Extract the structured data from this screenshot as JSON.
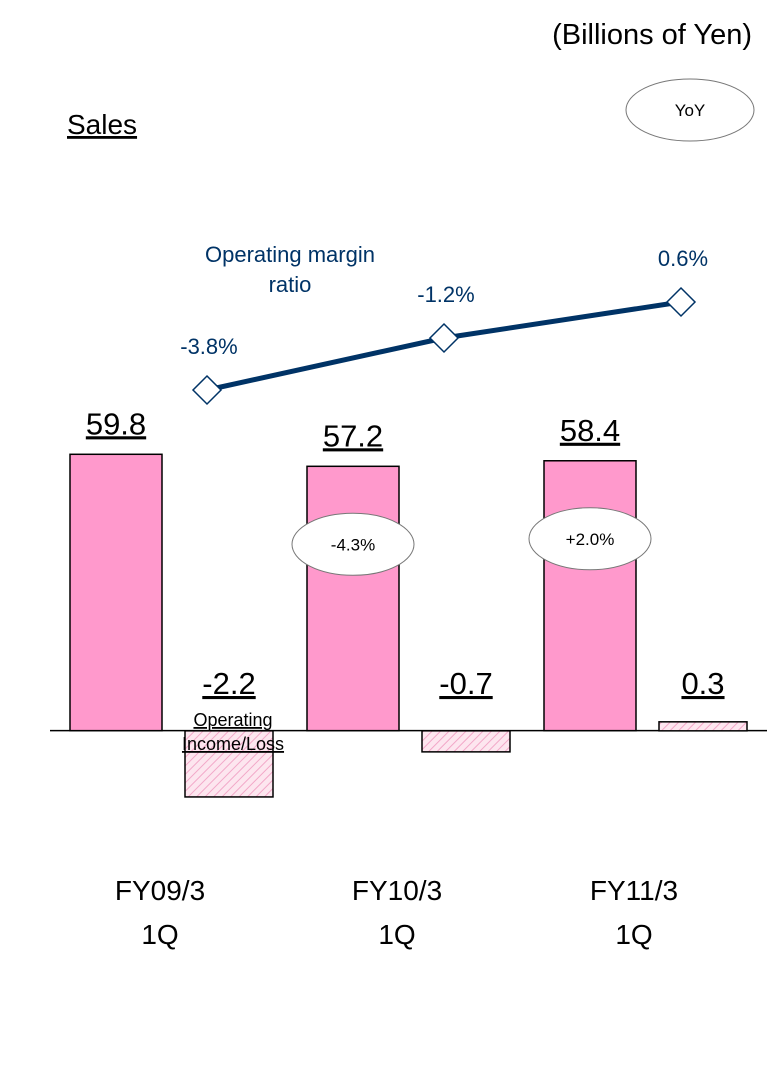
{
  "chart_data": {
    "type": "bar",
    "title": "(Billions of Yen)",
    "legend_label": "YoY",
    "categories": [
      "FY09/3\n1Q",
      "FY10/3\n1Q",
      "FY11/3\n1Q"
    ],
    "ylim": [
      -21.5,
      110.5
    ],
    "y2lim": [
      -3.3,
      17
    ],
    "y3lim": [
      -25.8,
      4.7
    ],
    "series": [
      {
        "name": "Sales",
        "color": "#ff99cc",
        "values": [
          59.8,
          57.2,
          58.4
        ],
        "yoy": [
          null,
          -4.3,
          2.0
        ],
        "yoy_labels": [
          null,
          "-4.3%",
          "+2.0%"
        ]
      },
      {
        "name": "Operating\nIncome/Loss",
        "color": "#f2a7c8",
        "axis": "y2",
        "values": [
          -2.2,
          -0.7,
          0.3
        ]
      },
      {
        "name": "Operating margin\nratio",
        "type": "line",
        "color": "#003366",
        "axis": "y3",
        "values": [
          -3.8,
          -1.2,
          0.6
        ],
        "value_labels": [
          "-3.8%",
          "-1.2%",
          "0.6%"
        ]
      }
    ]
  }
}
